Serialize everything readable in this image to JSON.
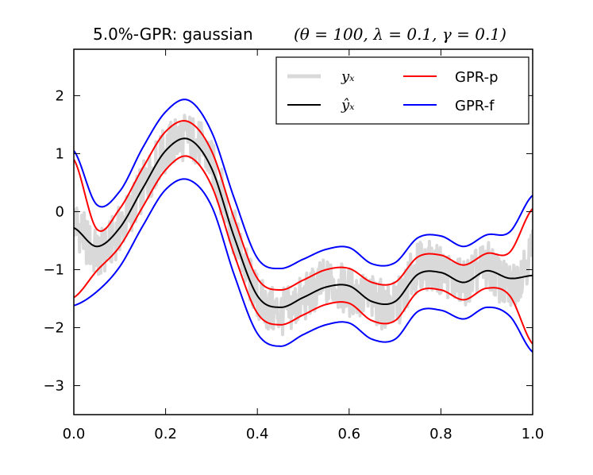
{
  "chart_data": {
    "type": "line",
    "title_prefix": "5.0%-GPR: gaussian ",
    "title_params": "(θ = 100, λ = 0.1, γ = 0.1)",
    "xlim": [
      0.0,
      1.0
    ],
    "ylim": [
      -3.5,
      2.8
    ],
    "xticks": [
      0.0,
      0.2,
      0.4,
      0.6,
      0.8,
      1.0
    ],
    "xtick_labels": [
      "0.0",
      "0.2",
      "0.4",
      "0.6",
      "0.8",
      "1.0"
    ],
    "yticks": [
      -3,
      -2,
      -1,
      0,
      1,
      2
    ],
    "ytick_labels": [
      "−3",
      "−2",
      "−1",
      "0",
      "1",
      "2"
    ],
    "legend_position": "top-right",
    "x": [
      0.0,
      0.05,
      0.1,
      0.15,
      0.2,
      0.25,
      0.3,
      0.35,
      0.4,
      0.45,
      0.5,
      0.55,
      0.6,
      0.65,
      0.7,
      0.75,
      0.8,
      0.85,
      0.9,
      0.95,
      1.0
    ],
    "series": [
      {
        "name": "y_x",
        "label": "yₓ",
        "math": true,
        "color": "#d9d9d9",
        "width": 4,
        "noisy": true,
        "values": [
          0.05,
          -0.95,
          -0.35,
          0.45,
          1.05,
          1.35,
          0.95,
          -0.25,
          -1.5,
          -1.9,
          -1.55,
          -1.1,
          -1.6,
          -1.45,
          -1.75,
          -0.75,
          -0.95,
          -1.2,
          -0.8,
          -1.6,
          0.05
        ]
      },
      {
        "name": "y_hat",
        "label": "ŷₓ",
        "math": true,
        "color": "#000000",
        "width": 2,
        "values": [
          -0.28,
          -0.6,
          -0.28,
          0.4,
          1.05,
          1.25,
          0.75,
          -0.45,
          -1.45,
          -1.65,
          -1.48,
          -1.3,
          -1.28,
          -1.55,
          -1.55,
          -1.08,
          -1.05,
          -1.22,
          -1.02,
          -1.15,
          -1.1
        ]
      },
      {
        "name": "GPR-p-upper",
        "label": "GPR-p",
        "math": false,
        "color": "#ff0000",
        "width": 2,
        "values": [
          0.9,
          -0.3,
          0.05,
          0.75,
          1.38,
          1.55,
          1.05,
          -0.13,
          -1.15,
          -1.35,
          -1.18,
          -1.0,
          -0.98,
          -1.22,
          -1.22,
          -0.78,
          -0.75,
          -0.92,
          -0.72,
          -0.7,
          0.05
        ]
      },
      {
        "name": "GPR-p-lower",
        "label": "",
        "math": false,
        "color": "#ff0000",
        "width": 2,
        "values": [
          -1.48,
          -1.02,
          -0.6,
          0.08,
          0.72,
          0.95,
          0.45,
          -0.75,
          -1.75,
          -1.95,
          -1.78,
          -1.6,
          -1.58,
          -1.88,
          -1.88,
          -1.38,
          -1.35,
          -1.52,
          -1.32,
          -1.45,
          -2.28
        ]
      },
      {
        "name": "GPR-f-upper",
        "label": "GPR-f",
        "math": false,
        "color": "#0000ff",
        "width": 2,
        "values": [
          1.05,
          0.12,
          0.35,
          1.1,
          1.72,
          1.92,
          1.38,
          0.22,
          -0.8,
          -0.98,
          -0.82,
          -0.65,
          -0.62,
          -0.9,
          -0.88,
          -0.45,
          -0.42,
          -0.6,
          -0.4,
          -0.35,
          0.28
        ]
      },
      {
        "name": "GPR-f-lower",
        "label": "",
        "math": false,
        "color": "#0000ff",
        "width": 2,
        "values": [
          -1.62,
          -1.38,
          -0.95,
          -0.25,
          0.38,
          0.55,
          0.1,
          -1.1,
          -2.1,
          -2.32,
          -2.12,
          -1.95,
          -1.92,
          -2.2,
          -2.2,
          -1.72,
          -1.7,
          -1.85,
          -1.65,
          -1.8,
          -2.42
        ]
      }
    ]
  }
}
